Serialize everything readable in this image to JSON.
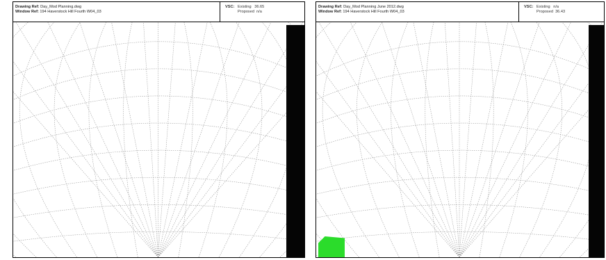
{
  "panels": [
    {
      "drawing_ref_label": "Drawing Ref:",
      "drawing_ref_value": "Day_Mod Planning.dwg",
      "window_ref_label": "Window Ref:",
      "window_ref_value": "194 Haverstock Hill Fourth W04_03",
      "vsc_label": "VSC:",
      "existing_label": "Existing",
      "existing_value": "36.65",
      "proposed_label": "Proposed",
      "proposed_value": "n/a",
      "has_green_obstruction": false
    },
    {
      "drawing_ref_label": "Drawing Ref:",
      "drawing_ref_value": "Day_Mod Planning June 2012.dwg",
      "window_ref_label": "Window Ref:",
      "window_ref_value": "194 Haverstock Hill Fourth W04_03",
      "vsc_label": "VSC:",
      "existing_label": "Existing",
      "existing_value": "n/a",
      "proposed_label": "Proposed",
      "proposed_value": "36.43",
      "has_green_obstruction": true
    }
  ],
  "colors": {
    "grid_line": "#9a9a9a",
    "obstruction_black": "#050505",
    "obstruction_green": "#2bdc2b"
  }
}
